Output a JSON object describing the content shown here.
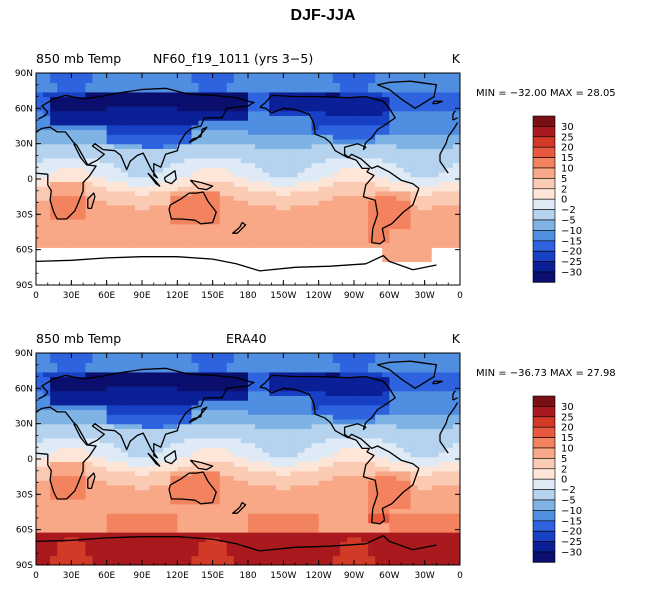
{
  "figure": {
    "title": "DJF-JJA"
  },
  "colors": {
    "levels": [
      "30",
      "25",
      "20",
      "15",
      "10",
      "5",
      "2",
      "0",
      "−2",
      "−5",
      "−10",
      "−15",
      "−20",
      "−25",
      "−30"
    ],
    "bins": [
      "#780f12",
      "#a9191d",
      "#d03a27",
      "#e8583c",
      "#f3825e",
      "#f8a887",
      "#fbcab2",
      "#fde6d8",
      "#deebf7",
      "#b5d3ee",
      "#7fb3e4",
      "#4f8ee0",
      "#2e63df",
      "#1840c4",
      "#0b1f96",
      "#0a0f6e"
    ],
    "land": "#000000",
    "missing": "#ffffff"
  },
  "chart_data": [
    {
      "type": "heatmap",
      "left_title": "850 mb Temp",
      "center_title": "NF60_f19_1011  (yrs 3−5)",
      "units": "K",
      "stats_text": "MIN = −32.00  MAX =   28.05",
      "xticks": [
        "0",
        "30E",
        "60E",
        "90E",
        "120E",
        "150E",
        "180",
        "150W",
        "120W",
        "90W",
        "60W",
        "30W",
        "0"
      ],
      "yticks": [
        "90N",
        "60N",
        "30N",
        "0",
        "30S",
        "60S",
        "90S"
      ],
      "xlim": [
        0,
        360
      ],
      "ylim": [
        -90,
        90
      ],
      "min": -32.0,
      "max": 28.05,
      "missing_south_of": -58
    },
    {
      "type": "heatmap",
      "left_title": "850 mb Temp",
      "center_title": "ERA40",
      "units": "K",
      "stats_text": "MIN = −36.73  MAX =   27.98",
      "xticks": [
        "0",
        "30E",
        "60E",
        "90E",
        "120E",
        "150E",
        "180",
        "150W",
        "120W",
        "90W",
        "60W",
        "30W",
        "0"
      ],
      "yticks": [
        "90N",
        "60N",
        "30N",
        "0",
        "30S",
        "60S",
        "90S"
      ],
      "xlim": [
        0,
        360
      ],
      "ylim": [
        -90,
        90
      ],
      "min": -36.73,
      "max": 27.98,
      "missing_south_of": null
    }
  ]
}
